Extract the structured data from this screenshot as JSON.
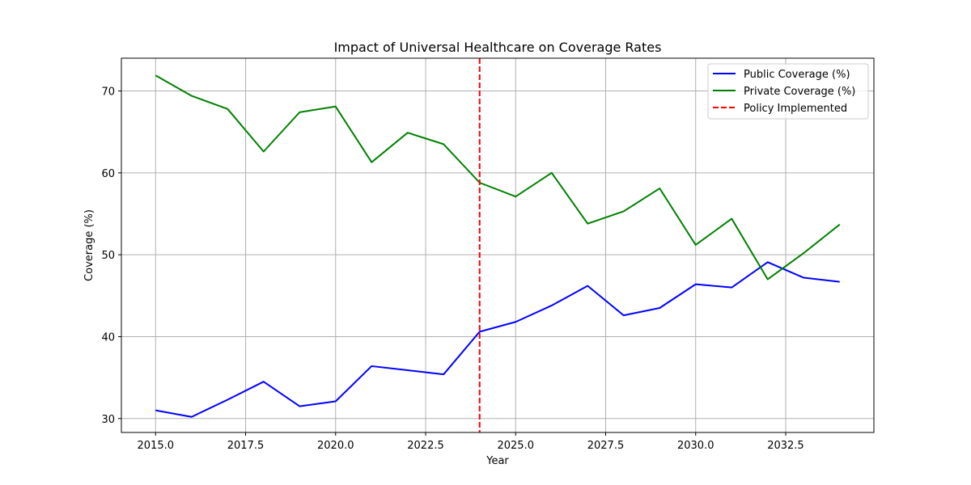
{
  "chart_data": {
    "type": "line",
    "title": "Impact of Universal Healthcare on Coverage Rates",
    "xlabel": "Year",
    "ylabel": "Coverage (%)",
    "xlim": [
      2014.05,
      2034.95
    ],
    "ylim": [
      28.3,
      74.0
    ],
    "x_ticks": [
      2015.0,
      2017.5,
      2020.0,
      2022.5,
      2025.0,
      2027.5,
      2030.0,
      2032.5
    ],
    "x_tick_labels": [
      "2015.0",
      "2017.5",
      "2020.0",
      "2022.5",
      "2025.0",
      "2027.5",
      "2030.0",
      "2032.5"
    ],
    "y_ticks": [
      30,
      40,
      50,
      60,
      70
    ],
    "y_tick_labels": [
      "30",
      "40",
      "50",
      "60",
      "70"
    ],
    "grid": true,
    "legend_position": "top-right",
    "x": [
      2015,
      2016,
      2017,
      2018,
      2019,
      2020,
      2021,
      2022,
      2023,
      2024,
      2025,
      2026,
      2027,
      2028,
      2029,
      2030,
      2031,
      2032,
      2033,
      2034
    ],
    "series": [
      {
        "name": "Public Coverage (%)",
        "color": "#0000ff",
        "values": [
          31.0,
          30.2,
          32.3,
          34.5,
          31.5,
          32.1,
          36.4,
          35.9,
          35.4,
          40.6,
          41.8,
          43.8,
          46.2,
          42.6,
          43.5,
          46.4,
          46.0,
          49.1,
          47.2,
          46.7
        ]
      },
      {
        "name": "Private Coverage (%)",
        "color": "#008000",
        "values": [
          71.9,
          69.4,
          67.8,
          62.6,
          67.4,
          68.1,
          61.3,
          64.9,
          63.5,
          58.8,
          57.1,
          60.0,
          53.8,
          55.3,
          58.1,
          51.2,
          54.4,
          47.0,
          50.2,
          53.7
        ]
      }
    ],
    "vline": {
      "name": "Policy Implemented",
      "x": 2024,
      "color": "#ff0000",
      "style": "dashed"
    }
  }
}
